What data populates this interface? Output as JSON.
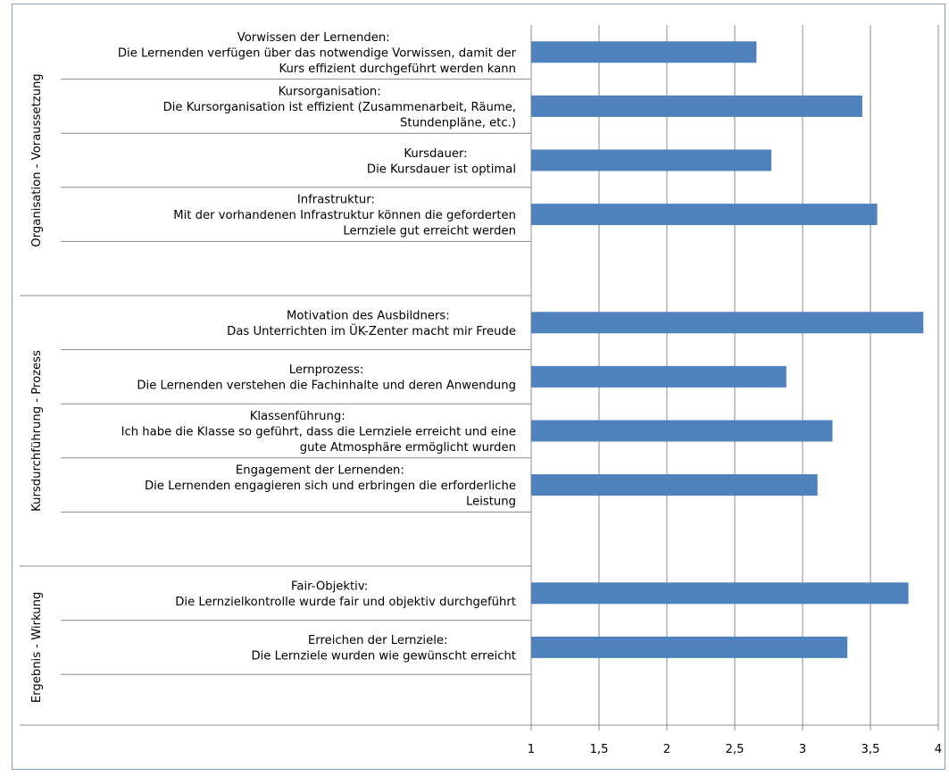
{
  "chart_data": {
    "type": "bar",
    "orientation": "horizontal",
    "xlim": [
      1,
      4
    ],
    "xticks": [
      "1",
      "1,5",
      "2",
      "2,5",
      "3",
      "3,5",
      "4"
    ],
    "bar_color": "#4f81bd",
    "grid": true,
    "groups": [
      {
        "name": "Organisation - Voraussetzung",
        "items": [
          {
            "label": [
              "Vorwissen der Lernenden:",
              "Die Lernenden verfügen über das notwendige Vorwissen, damit der",
              "Kurs effizient durchgeführt werden kann"
            ],
            "value": 2.66
          },
          {
            "label": [
              "Kursorganisation:",
              "Die Kursorganisation ist effizient (Zusammenarbeit, Räume,",
              "Stundenpläne, etc.)"
            ],
            "value": 3.44
          },
          {
            "label": [
              "Kursdauer:",
              "Die Kursdauer ist optimal"
            ],
            "value": 2.77
          },
          {
            "label": [
              "Infrastruktur:",
              "Mit der vorhandenen Infrastruktur können die geforderten",
              "Lernziele gut erreicht werden"
            ],
            "value": 3.55
          }
        ]
      },
      {
        "name": "Kursdurchführung - Prozess",
        "items": [
          {
            "label": [
              "Motivation des Ausbildners:",
              "Das Unterrichten im ÜK-Zenter macht mir Freude"
            ],
            "value": 3.89
          },
          {
            "label": [
              "Lernprozess:",
              "Die Lernenden verstehen die Fachinhalte und deren Anwendung"
            ],
            "value": 2.88
          },
          {
            "label": [
              "Klassenführung:",
              "Ich habe die Klasse so geführt, dass die Lernziele erreicht und eine",
              "gute Atmosphäre ermöglicht wurden"
            ],
            "value": 3.22
          },
          {
            "label": [
              "Engagement der Lernenden:",
              "Die Lernenden engagieren sich und erbringen die erforderliche",
              "Leistung"
            ],
            "value": 3.11
          }
        ]
      },
      {
        "name": "Ergebnis - Wirkung",
        "items": [
          {
            "label": [
              "Fair-Objektiv:",
              "Die Lernzielkontrolle wurde fair und objektiv durchgeführt"
            ],
            "value": 3.78
          },
          {
            "label": [
              "Erreichen der Lernziele:",
              "Die Lernziele wurden wie gewünscht erreicht"
            ],
            "value": 3.33
          }
        ]
      }
    ]
  }
}
